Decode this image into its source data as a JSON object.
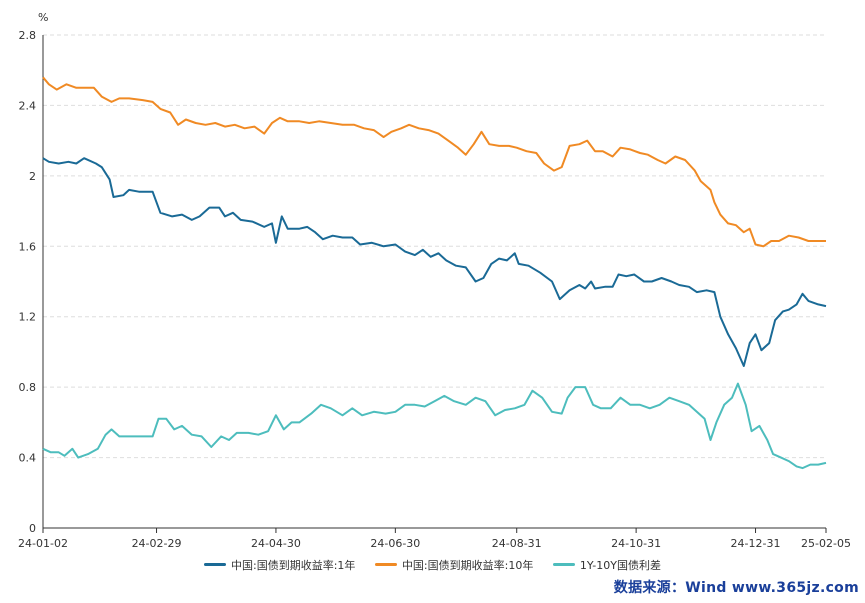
{
  "chart_data": {
    "type": "line",
    "unit_label": "%",
    "x_tick_labels": [
      "24-01-02",
      "24-02-29",
      "24-04-30",
      "24-06-30",
      "24-08-31",
      "24-10-31",
      "24-12-31",
      "25-02-05"
    ],
    "x_tick_dates": [
      "2024-01-02",
      "2024-02-29",
      "2024-04-30",
      "2024-06-30",
      "2024-08-31",
      "2024-10-31",
      "2024-12-31",
      "2025-02-05"
    ],
    "y_ticks": [
      0,
      0.4,
      0.8,
      1.2,
      1.6,
      2,
      2.4,
      2.8
    ],
    "y_tick_labels": [
      "0",
      "0.4",
      "0.8",
      "1.2",
      "1.6",
      "2",
      "2.4",
      "2.8"
    ],
    "ylim": [
      0,
      2.8
    ],
    "xlim": [
      "2024-01-02",
      "2025-02-05"
    ],
    "grid": true,
    "legend_position": "bottom",
    "series": [
      {
        "name": "中国:国债到期收益率:1年",
        "color": "#1a6a96",
        "points": [
          [
            "2024-01-02",
            2.1
          ],
          [
            "2024-01-05",
            2.08
          ],
          [
            "2024-01-10",
            2.07
          ],
          [
            "2024-01-15",
            2.08
          ],
          [
            "2024-01-19",
            2.07
          ],
          [
            "2024-01-23",
            2.1
          ],
          [
            "2024-01-29",
            2.07
          ],
          [
            "2024-02-01",
            2.05
          ],
          [
            "2024-02-05",
            1.98
          ],
          [
            "2024-02-07",
            1.88
          ],
          [
            "2024-02-12",
            1.89
          ],
          [
            "2024-02-15",
            1.92
          ],
          [
            "2024-02-20",
            1.91
          ],
          [
            "2024-02-27",
            1.91
          ],
          [
            "2024-03-02",
            1.79
          ],
          [
            "2024-03-08",
            1.77
          ],
          [
            "2024-03-13",
            1.78
          ],
          [
            "2024-03-18",
            1.75
          ],
          [
            "2024-03-22",
            1.77
          ],
          [
            "2024-03-27",
            1.82
          ],
          [
            "2024-04-01",
            1.82
          ],
          [
            "2024-04-04",
            1.77
          ],
          [
            "2024-04-08",
            1.79
          ],
          [
            "2024-04-12",
            1.75
          ],
          [
            "2024-04-18",
            1.74
          ],
          [
            "2024-04-24",
            1.71
          ],
          [
            "2024-04-28",
            1.73
          ],
          [
            "2024-04-30",
            1.62
          ],
          [
            "2024-05-03",
            1.77
          ],
          [
            "2024-05-06",
            1.7
          ],
          [
            "2024-05-12",
            1.7
          ],
          [
            "2024-05-16",
            1.71
          ],
          [
            "2024-05-20",
            1.68
          ],
          [
            "2024-05-24",
            1.64
          ],
          [
            "2024-05-29",
            1.66
          ],
          [
            "2024-06-03",
            1.65
          ],
          [
            "2024-06-08",
            1.65
          ],
          [
            "2024-06-12",
            1.61
          ],
          [
            "2024-06-18",
            1.62
          ],
          [
            "2024-06-24",
            1.6
          ],
          [
            "2024-06-30",
            1.61
          ],
          [
            "2024-07-05",
            1.57
          ],
          [
            "2024-07-10",
            1.55
          ],
          [
            "2024-07-14",
            1.58
          ],
          [
            "2024-07-18",
            1.54
          ],
          [
            "2024-07-22",
            1.56
          ],
          [
            "2024-07-26",
            1.52
          ],
          [
            "2024-07-31",
            1.49
          ],
          [
            "2024-08-05",
            1.48
          ],
          [
            "2024-08-10",
            1.4
          ],
          [
            "2024-08-14",
            1.42
          ],
          [
            "2024-08-18",
            1.5
          ],
          [
            "2024-08-22",
            1.53
          ],
          [
            "2024-08-26",
            1.52
          ],
          [
            "2024-08-30",
            1.56
          ],
          [
            "2024-09-01",
            1.5
          ],
          [
            "2024-09-06",
            1.49
          ],
          [
            "2024-09-12",
            1.45
          ],
          [
            "2024-09-18",
            1.4
          ],
          [
            "2024-09-22",
            1.3
          ],
          [
            "2024-09-27",
            1.35
          ],
          [
            "2024-10-02",
            1.38
          ],
          [
            "2024-10-05",
            1.36
          ],
          [
            "2024-10-08",
            1.4
          ],
          [
            "2024-10-10",
            1.36
          ],
          [
            "2024-10-15",
            1.37
          ],
          [
            "2024-10-19",
            1.37
          ],
          [
            "2024-10-22",
            1.44
          ],
          [
            "2024-10-26",
            1.43
          ],
          [
            "2024-10-30",
            1.44
          ],
          [
            "2024-11-04",
            1.4
          ],
          [
            "2024-11-08",
            1.4
          ],
          [
            "2024-11-13",
            1.42
          ],
          [
            "2024-11-18",
            1.4
          ],
          [
            "2024-11-22",
            1.38
          ],
          [
            "2024-11-27",
            1.37
          ],
          [
            "2024-12-01",
            1.34
          ],
          [
            "2024-12-06",
            1.35
          ],
          [
            "2024-12-10",
            1.34
          ],
          [
            "2024-12-13",
            1.2
          ],
          [
            "2024-12-17",
            1.1
          ],
          [
            "2024-12-21",
            1.02
          ],
          [
            "2024-12-25",
            0.92
          ],
          [
            "2024-12-28",
            1.05
          ],
          [
            "2024-12-31",
            1.1
          ],
          [
            "2025-01-03",
            1.01
          ],
          [
            "2025-01-07",
            1.05
          ],
          [
            "2025-01-10",
            1.18
          ],
          [
            "2025-01-14",
            1.23
          ],
          [
            "2025-01-17",
            1.24
          ],
          [
            "2025-01-21",
            1.27
          ],
          [
            "2025-01-24",
            1.33
          ],
          [
            "2025-01-27",
            1.29
          ],
          [
            "2025-02-01",
            1.27
          ],
          [
            "2025-02-05",
            1.26
          ]
        ]
      },
      {
        "name": "中国:国债到期收益率:10年",
        "color": "#f08a24",
        "points": [
          [
            "2024-01-02",
            2.56
          ],
          [
            "2024-01-05",
            2.52
          ],
          [
            "2024-01-09",
            2.49
          ],
          [
            "2024-01-14",
            2.52
          ],
          [
            "2024-01-19",
            2.5
          ],
          [
            "2024-01-24",
            2.5
          ],
          [
            "2024-01-28",
            2.5
          ],
          [
            "2024-02-01",
            2.45
          ],
          [
            "2024-02-06",
            2.42
          ],
          [
            "2024-02-10",
            2.44
          ],
          [
            "2024-02-15",
            2.44
          ],
          [
            "2024-02-22",
            2.43
          ],
          [
            "2024-02-27",
            2.42
          ],
          [
            "2024-03-02",
            2.38
          ],
          [
            "2024-03-07",
            2.36
          ],
          [
            "2024-03-11",
            2.29
          ],
          [
            "2024-03-15",
            2.32
          ],
          [
            "2024-03-20",
            2.3
          ],
          [
            "2024-03-25",
            2.29
          ],
          [
            "2024-03-30",
            2.3
          ],
          [
            "2024-04-04",
            2.28
          ],
          [
            "2024-04-09",
            2.29
          ],
          [
            "2024-04-14",
            2.27
          ],
          [
            "2024-04-19",
            2.28
          ],
          [
            "2024-04-24",
            2.24
          ],
          [
            "2024-04-28",
            2.3
          ],
          [
            "2024-05-02",
            2.33
          ],
          [
            "2024-05-06",
            2.31
          ],
          [
            "2024-05-12",
            2.31
          ],
          [
            "2024-05-17",
            2.3
          ],
          [
            "2024-05-22",
            2.31
          ],
          [
            "2024-05-28",
            2.3
          ],
          [
            "2024-06-03",
            2.29
          ],
          [
            "2024-06-09",
            2.29
          ],
          [
            "2024-06-14",
            2.27
          ],
          [
            "2024-06-19",
            2.26
          ],
          [
            "2024-06-24",
            2.22
          ],
          [
            "2024-06-28",
            2.25
          ],
          [
            "2024-07-03",
            2.27
          ],
          [
            "2024-07-07",
            2.29
          ],
          [
            "2024-07-12",
            2.27
          ],
          [
            "2024-07-17",
            2.26
          ],
          [
            "2024-07-22",
            2.24
          ],
          [
            "2024-07-27",
            2.2
          ],
          [
            "2024-08-01",
            2.16
          ],
          [
            "2024-08-05",
            2.12
          ],
          [
            "2024-08-09",
            2.18
          ],
          [
            "2024-08-13",
            2.25
          ],
          [
            "2024-08-17",
            2.18
          ],
          [
            "2024-08-22",
            2.17
          ],
          [
            "2024-08-27",
            2.17
          ],
          [
            "2024-08-31",
            2.16
          ],
          [
            "2024-09-05",
            2.14
          ],
          [
            "2024-09-10",
            2.13
          ],
          [
            "2024-09-14",
            2.07
          ],
          [
            "2024-09-19",
            2.03
          ],
          [
            "2024-09-23",
            2.05
          ],
          [
            "2024-09-27",
            2.17
          ],
          [
            "2024-10-02",
            2.18
          ],
          [
            "2024-10-06",
            2.2
          ],
          [
            "2024-10-10",
            2.14
          ],
          [
            "2024-10-14",
            2.14
          ],
          [
            "2024-10-19",
            2.11
          ],
          [
            "2024-10-23",
            2.16
          ],
          [
            "2024-10-28",
            2.15
          ],
          [
            "2024-11-02",
            2.13
          ],
          [
            "2024-11-06",
            2.12
          ],
          [
            "2024-11-11",
            2.09
          ],
          [
            "2024-11-15",
            2.07
          ],
          [
            "2024-11-20",
            2.11
          ],
          [
            "2024-11-25",
            2.09
          ],
          [
            "2024-11-30",
            2.03
          ],
          [
            "2024-12-03",
            1.97
          ],
          [
            "2024-12-08",
            1.92
          ],
          [
            "2024-12-10",
            1.85
          ],
          [
            "2024-12-13",
            1.78
          ],
          [
            "2024-12-17",
            1.73
          ],
          [
            "2024-12-21",
            1.72
          ],
          [
            "2024-12-25",
            1.68
          ],
          [
            "2024-12-28",
            1.7
          ],
          [
            "2024-12-31",
            1.61
          ],
          [
            "2025-01-04",
            1.6
          ],
          [
            "2025-01-08",
            1.63
          ],
          [
            "2025-01-12",
            1.63
          ],
          [
            "2025-01-17",
            1.66
          ],
          [
            "2025-01-22",
            1.65
          ],
          [
            "2025-01-27",
            1.63
          ],
          [
            "2025-02-01",
            1.63
          ],
          [
            "2025-02-05",
            1.63
          ]
        ]
      },
      {
        "name": "1Y-10Y国债利差",
        "color": "#4dbdbd",
        "points": [
          [
            "2024-01-02",
            0.45
          ],
          [
            "2024-01-06",
            0.43
          ],
          [
            "2024-01-10",
            0.43
          ],
          [
            "2024-01-13",
            0.41
          ],
          [
            "2024-01-17",
            0.45
          ],
          [
            "2024-01-20",
            0.4
          ],
          [
            "2024-01-25",
            0.42
          ],
          [
            "2024-01-30",
            0.45
          ],
          [
            "2024-02-03",
            0.53
          ],
          [
            "2024-02-06",
            0.56
          ],
          [
            "2024-02-10",
            0.52
          ],
          [
            "2024-02-14",
            0.52
          ],
          [
            "2024-02-20",
            0.52
          ],
          [
            "2024-02-27",
            0.52
          ],
          [
            "2024-03-01",
            0.62
          ],
          [
            "2024-03-05",
            0.62
          ],
          [
            "2024-03-09",
            0.56
          ],
          [
            "2024-03-13",
            0.58
          ],
          [
            "2024-03-18",
            0.53
          ],
          [
            "2024-03-23",
            0.52
          ],
          [
            "2024-03-28",
            0.46
          ],
          [
            "2024-04-02",
            0.52
          ],
          [
            "2024-04-06",
            0.5
          ],
          [
            "2024-04-10",
            0.54
          ],
          [
            "2024-04-16",
            0.54
          ],
          [
            "2024-04-21",
            0.53
          ],
          [
            "2024-04-26",
            0.55
          ],
          [
            "2024-04-30",
            0.64
          ],
          [
            "2024-05-04",
            0.56
          ],
          [
            "2024-05-08",
            0.6
          ],
          [
            "2024-05-12",
            0.6
          ],
          [
            "2024-05-18",
            0.65
          ],
          [
            "2024-05-23",
            0.7
          ],
          [
            "2024-05-28",
            0.68
          ],
          [
            "2024-06-03",
            0.64
          ],
          [
            "2024-06-08",
            0.68
          ],
          [
            "2024-06-13",
            0.64
          ],
          [
            "2024-06-19",
            0.66
          ],
          [
            "2024-06-25",
            0.65
          ],
          [
            "2024-06-30",
            0.66
          ],
          [
            "2024-07-05",
            0.7
          ],
          [
            "2024-07-10",
            0.7
          ],
          [
            "2024-07-15",
            0.69
          ],
          [
            "2024-07-20",
            0.72
          ],
          [
            "2024-07-25",
            0.75
          ],
          [
            "2024-07-30",
            0.72
          ],
          [
            "2024-08-05",
            0.7
          ],
          [
            "2024-08-10",
            0.74
          ],
          [
            "2024-08-15",
            0.72
          ],
          [
            "2024-08-20",
            0.64
          ],
          [
            "2024-08-25",
            0.67
          ],
          [
            "2024-08-30",
            0.68
          ],
          [
            "2024-09-04",
            0.7
          ],
          [
            "2024-09-08",
            0.78
          ],
          [
            "2024-09-13",
            0.74
          ],
          [
            "2024-09-18",
            0.66
          ],
          [
            "2024-09-23",
            0.65
          ],
          [
            "2024-09-26",
            0.74
          ],
          [
            "2024-09-30",
            0.8
          ],
          [
            "2024-10-05",
            0.8
          ],
          [
            "2024-10-09",
            0.7
          ],
          [
            "2024-10-13",
            0.68
          ],
          [
            "2024-10-18",
            0.68
          ],
          [
            "2024-10-23",
            0.74
          ],
          [
            "2024-10-28",
            0.7
          ],
          [
            "2024-11-02",
            0.7
          ],
          [
            "2024-11-07",
            0.68
          ],
          [
            "2024-11-12",
            0.7
          ],
          [
            "2024-11-17",
            0.74
          ],
          [
            "2024-11-22",
            0.72
          ],
          [
            "2024-11-27",
            0.7
          ],
          [
            "2024-12-01",
            0.66
          ],
          [
            "2024-12-05",
            0.62
          ],
          [
            "2024-12-08",
            0.5
          ],
          [
            "2024-12-11",
            0.6
          ],
          [
            "2024-12-15",
            0.7
          ],
          [
            "2024-12-19",
            0.74
          ],
          [
            "2024-12-22",
            0.82
          ],
          [
            "2024-12-26",
            0.7
          ],
          [
            "2024-12-29",
            0.55
          ],
          [
            "2025-01-02",
            0.58
          ],
          [
            "2025-01-06",
            0.5
          ],
          [
            "2025-01-09",
            0.42
          ],
          [
            "2025-01-13",
            0.4
          ],
          [
            "2025-01-17",
            0.38
          ],
          [
            "2025-01-21",
            0.35
          ],
          [
            "2025-01-24",
            0.34
          ],
          [
            "2025-01-28",
            0.36
          ],
          [
            "2025-02-01",
            0.36
          ],
          [
            "2025-02-05",
            0.37
          ]
        ]
      }
    ]
  },
  "watermark": "数据来源：Wind  www.365jz.com"
}
